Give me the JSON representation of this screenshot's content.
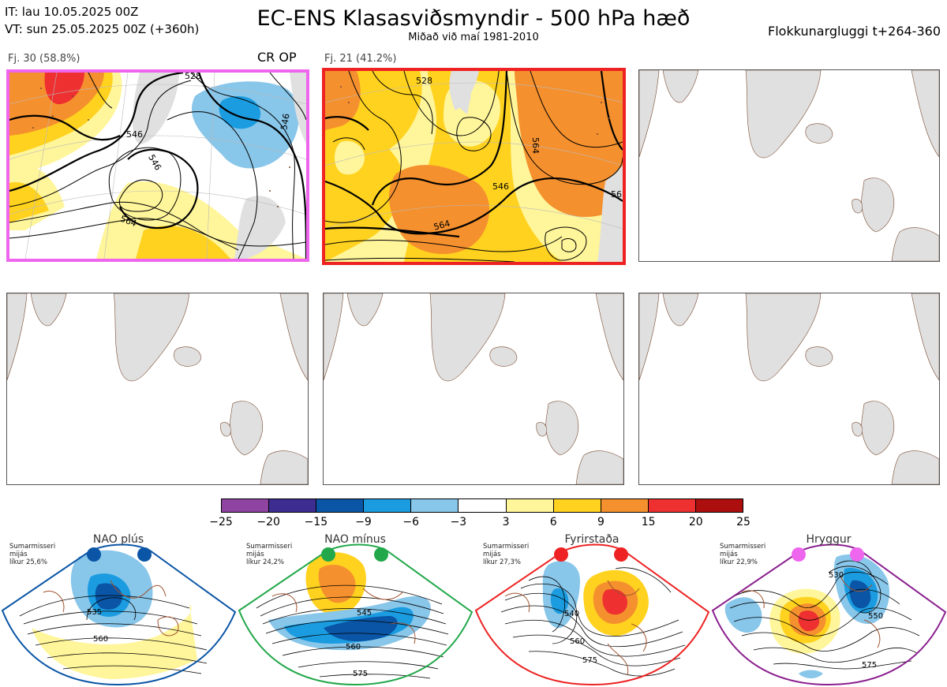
{
  "header": {
    "it_line": "IT: lau 10.05.2025 00Z",
    "vt_line": "VT: sun 25.05.2025 00Z  (+360h)",
    "title": "EC-ENS Klasasviðsmyndir - 500 hPa hæð",
    "subtitle": "Miðað við maí 1981-2010",
    "window": "Flokkunargluggi t+264-360"
  },
  "clusters": [
    {
      "label": "Fj. 30 (58.8%)",
      "tag": "CR OP",
      "border_color": "#ee66ee",
      "contour_labels": [
        "546",
        "546",
        "546",
        "564",
        "528"
      ]
    },
    {
      "label": "Fj. 21 (41.2%)",
      "tag": "",
      "border_color": "#ee2222",
      "contour_labels": [
        "564",
        "546",
        "564",
        "528",
        "56"
      ]
    }
  ],
  "colorbar": {
    "colors": [
      "#8e44a0",
      "#3d2d90",
      "#0a55a5",
      "#1b9ce0",
      "#88c6ea",
      "#ffffff",
      "#fff59a",
      "#ffd21f",
      "#f5902e",
      "#ee3030",
      "#ad0f0f"
    ],
    "ticks": [
      "−25",
      "−20",
      "−15",
      "−9",
      "−6",
      "−3",
      "3",
      "6",
      "9",
      "15",
      "20",
      "25"
    ]
  },
  "regimes": [
    {
      "name": "NAO plús",
      "season": "Sumarmisseri",
      "type_label": "mijás",
      "prob": "líkur 25,6%",
      "color": "#0a55a5",
      "contour_labels": [
        "535",
        "560"
      ]
    },
    {
      "name": "NAO mínus",
      "season": "Sumarmisseri",
      "type_label": "mijás",
      "prob": "líkur 24,2%",
      "color": "#22a84a",
      "contour_labels": [
        "545",
        "560",
        "575"
      ]
    },
    {
      "name": "Fyrirstaða",
      "season": "Sumarmisseri",
      "type_label": "mijás",
      "prob": "líkur 27,3%",
      "color": "#ee2222",
      "contour_labels": [
        "540",
        "560",
        "575"
      ]
    },
    {
      "name": "Hryggur",
      "season": "Sumarmisseri",
      "type_label": "mijás",
      "prob": "líkur 22,9%",
      "color": "#8b1f8f",
      "contour_labels": [
        "530",
        "550",
        "575"
      ]
    }
  ]
}
